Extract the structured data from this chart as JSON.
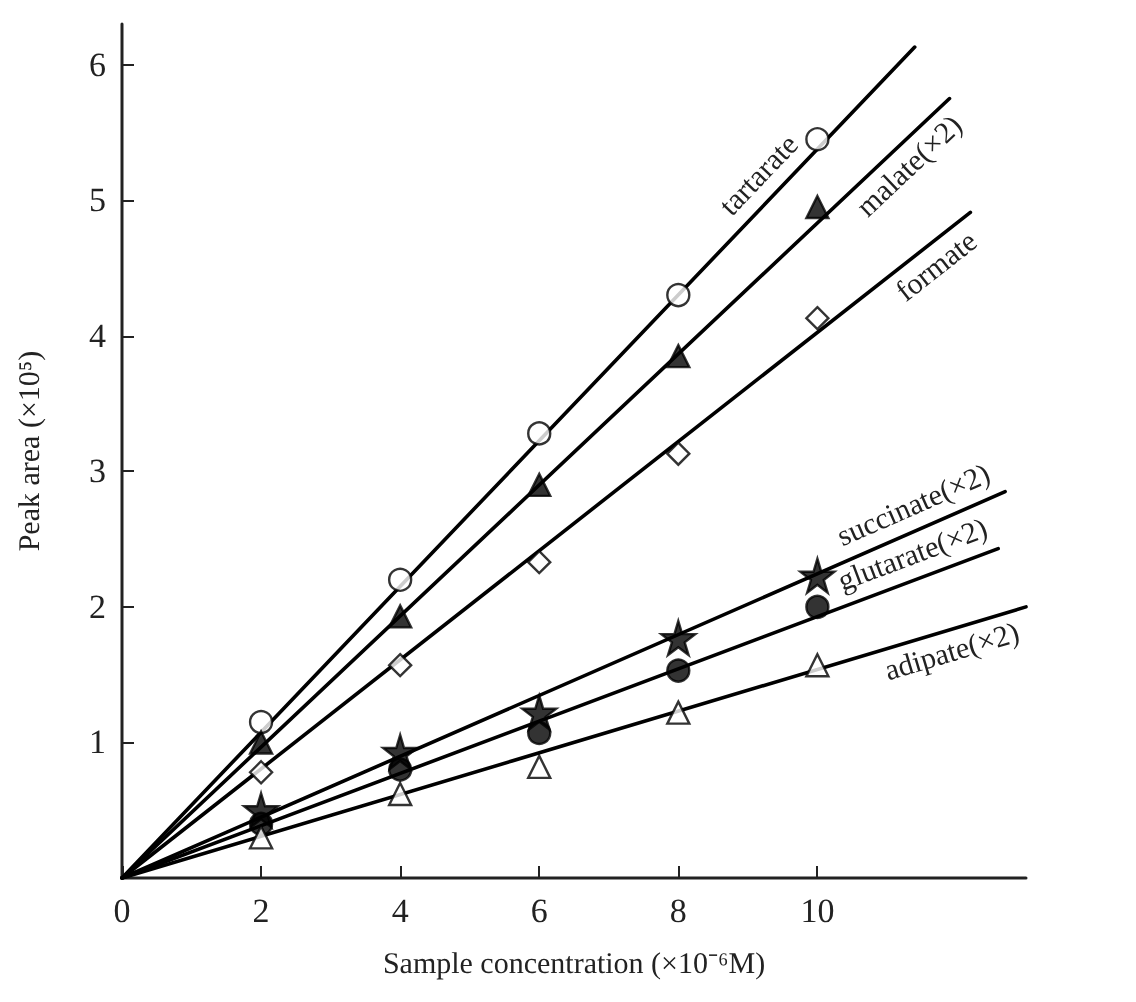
{
  "chart_data": {
    "type": "scatter",
    "xlabel": "Sample concentration (×10⁻⁶M)",
    "ylabel": "Peak area (×10⁵)",
    "xlim": [
      0,
      13
    ],
    "ylim": [
      0,
      6.3
    ],
    "xticks": [
      0,
      2,
      4,
      6,
      8,
      10
    ],
    "yticks": [
      1,
      2,
      3,
      4,
      5,
      6
    ],
    "grid": false,
    "legend": false,
    "series": [
      {
        "name": "tartarate",
        "color": "#ffffff",
        "marker": "circle",
        "x": [
          2,
          4,
          6,
          8,
          10
        ],
        "values": [
          1.15,
          2.2,
          3.28,
          4.3,
          5.45
        ]
      },
      {
        "name": "malate(×2)",
        "color": "#000000",
        "marker": "triangle",
        "x": [
          2,
          4,
          6,
          8,
          10
        ],
        "values": [
          1.0,
          1.93,
          2.9,
          3.85,
          4.95
        ]
      },
      {
        "name": "formate",
        "color": "#ffffff",
        "marker": "diamond",
        "x": [
          2,
          4,
          6,
          8,
          10
        ],
        "values": [
          0.78,
          1.57,
          2.33,
          3.13,
          4.13
        ]
      },
      {
        "name": "succinate(×2)",
        "color": "#000000",
        "marker": "star",
        "x": [
          2,
          4,
          6,
          8,
          10
        ],
        "values": [
          0.5,
          0.93,
          1.22,
          1.77,
          2.23
        ]
      },
      {
        "name": "glutarate(×2)",
        "color": "#000000",
        "marker": "circle",
        "x": [
          2,
          4,
          6,
          8,
          10
        ],
        "values": [
          0.4,
          0.8,
          1.07,
          1.53,
          2.0
        ]
      },
      {
        "name": "adipate(×2)",
        "color": "#ffffff",
        "marker": "triangle",
        "x": [
          2,
          4,
          6,
          8,
          10
        ],
        "values": [
          0.3,
          0.62,
          0.82,
          1.22,
          1.57
        ]
      },
      {
        "type": "line",
        "color": "#000000",
        "marker": "none",
        "line_style": "solid",
        "x": [
          0,
          11.4
        ],
        "values": [
          0,
          6.13
        ]
      },
      {
        "type": "line",
        "color": "#000000",
        "marker": "none",
        "line_style": "solid",
        "x": [
          0,
          11.9
        ],
        "values": [
          0,
          5.75
        ]
      },
      {
        "type": "line",
        "color": "#000000",
        "marker": "none",
        "line_style": "solid",
        "x": [
          0,
          12.2
        ],
        "values": [
          0,
          4.91
        ]
      },
      {
        "type": "line",
        "color": "#000000",
        "marker": "none",
        "line_style": "solid",
        "x": [
          0,
          12.7
        ],
        "values": [
          0,
          2.85
        ]
      },
      {
        "type": "line",
        "color": "#000000",
        "marker": "none",
        "line_style": "solid",
        "x": [
          0,
          12.6
        ],
        "values": [
          0,
          2.43
        ]
      },
      {
        "type": "line",
        "color": "#000000",
        "marker": "none",
        "line_style": "solid",
        "x": [
          0,
          13.0
        ],
        "values": [
          0,
          2.0
        ]
      }
    ]
  }
}
